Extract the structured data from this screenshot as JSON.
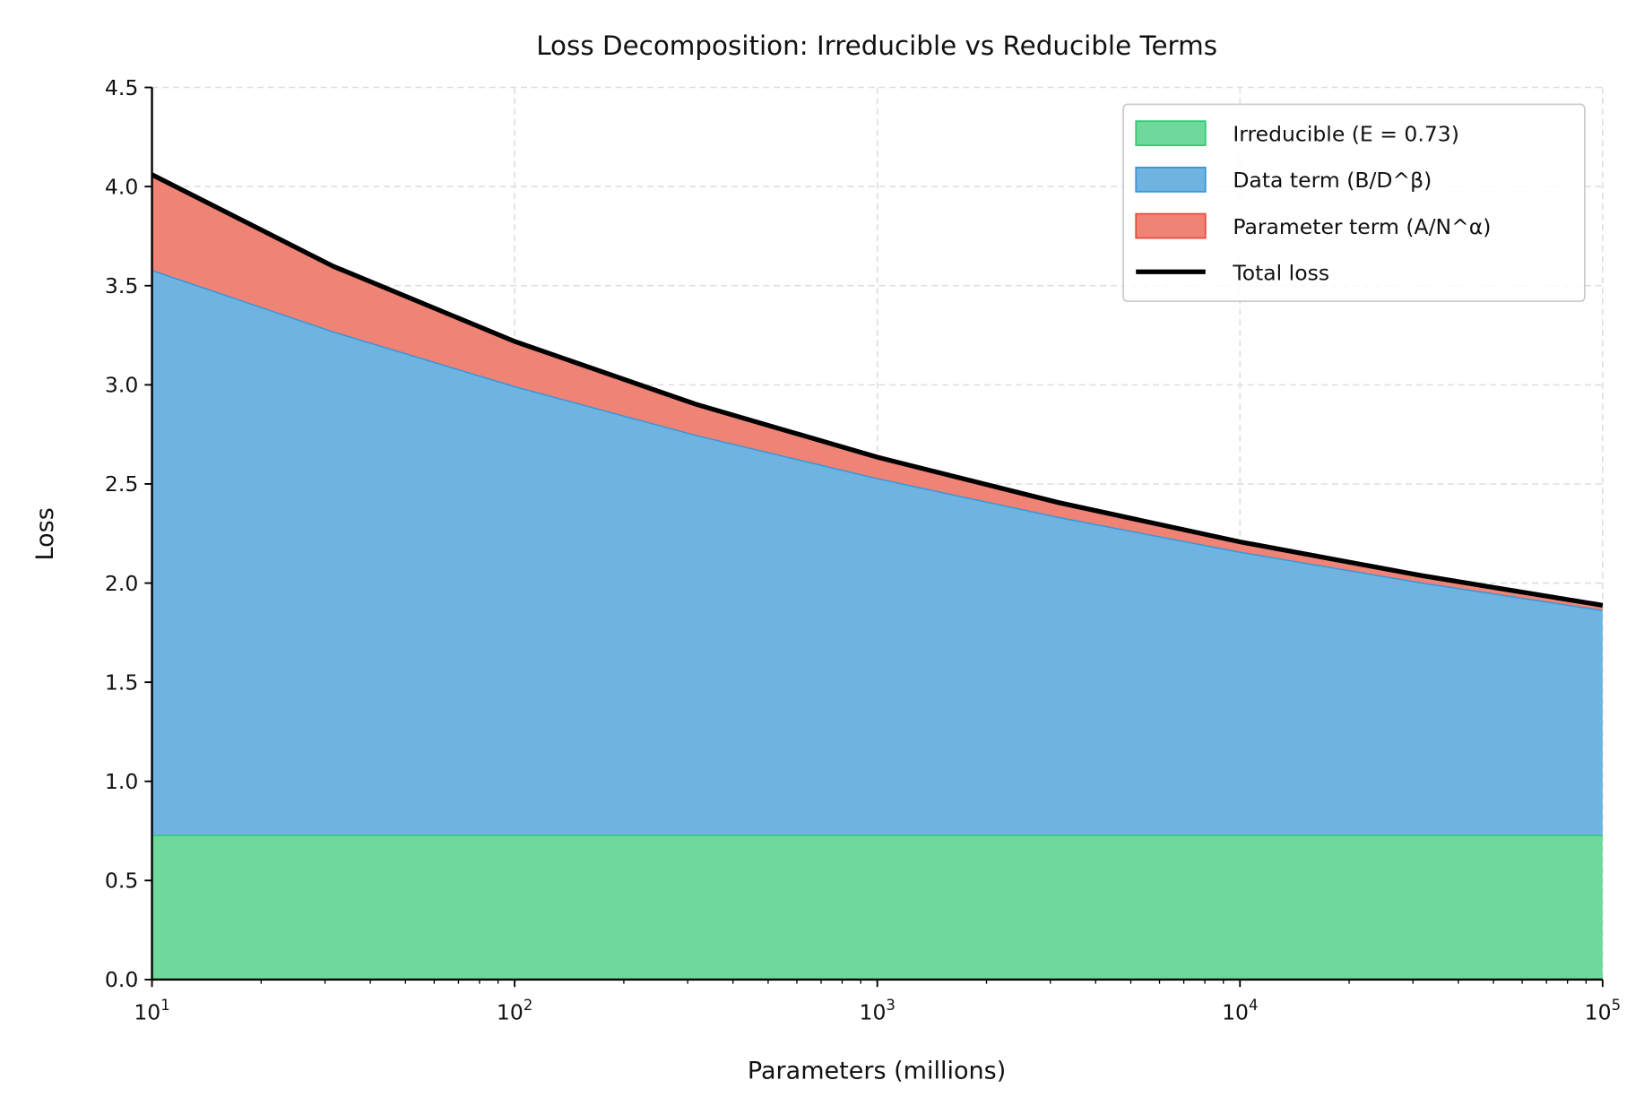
{
  "chart_data": {
    "type": "area",
    "title": "Loss Decomposition: Irreducible vs Reducible Terms",
    "xlabel": "Parameters (millions)",
    "ylabel": "Loss",
    "xscale": "log",
    "xlim": [
      10,
      100000
    ],
    "ylim": [
      0,
      4.5
    ],
    "grid": true,
    "legend_placement": "top-right",
    "x": [
      10,
      31.6,
      100,
      316,
      1000,
      3162,
      10000,
      31623,
      100000
    ],
    "x_tick_labels": [
      {
        "base": "10",
        "exp": "1"
      },
      {
        "base": "10",
        "exp": "2"
      },
      {
        "base": "10",
        "exp": "3"
      },
      {
        "base": "10",
        "exp": "4"
      },
      {
        "base": "10",
        "exp": "5"
      }
    ],
    "y_ticks": [
      "0.0",
      "0.5",
      "1.0",
      "1.5",
      "2.0",
      "2.5",
      "3.0",
      "3.5",
      "4.0",
      "4.5"
    ],
    "series": [
      {
        "name": "Irreducible (E = 0.73)",
        "kind": "stacked-area",
        "color": "#6fd99b",
        "edge": "#2ecc71",
        "values": [
          0.73,
          0.73,
          0.73,
          0.73,
          0.73,
          0.73,
          0.73,
          0.73,
          0.73
        ]
      },
      {
        "name": "Data term (B/D^β)",
        "kind": "stacked-area",
        "color": "#6fb3e0",
        "edge": "#3498db",
        "values": [
          2.85,
          2.54,
          2.264,
          2.018,
          1.8,
          1.604,
          1.429,
          1.274,
          1.135
        ]
      },
      {
        "name": "Parameter term (A/N^α)",
        "kind": "stacked-area",
        "color": "#ef8375",
        "edge": "#e74c3c",
        "values": [
          0.48,
          0.328,
          0.225,
          0.154,
          0.105,
          0.072,
          0.049,
          0.034,
          0.023
        ]
      },
      {
        "name": "Total loss",
        "kind": "line",
        "color": "#000000",
        "values": [
          4.06,
          3.598,
          3.219,
          2.902,
          2.635,
          2.406,
          2.208,
          2.038,
          1.888
        ]
      }
    ]
  }
}
